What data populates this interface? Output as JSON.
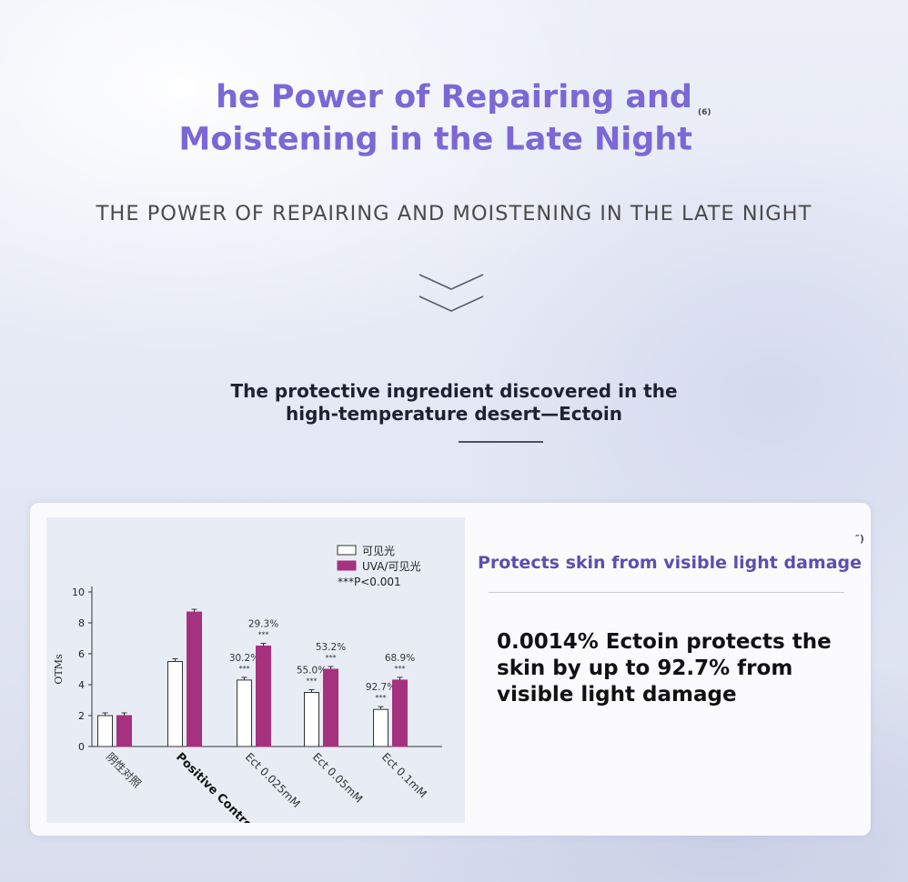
{
  "header": {
    "title_line1": "he Power of Repairing and",
    "title_line2": "Moistening in the Late Night",
    "title_ref": "(6)",
    "subtitle": "THE POWER OF REPAIRING AND MOISTENING IN THE LATE NIGHT",
    "description_line1": "The protective ingredient discovered in the",
    "description_line2": "high-temperature desert—Ectoin"
  },
  "panel": {
    "title": "Protects skin from visible light damage",
    "ref_mark": "″)",
    "body": "0.0014% Ectoin protects the skin by up to 92.7% from visible light damage"
  },
  "colors": {
    "title": "#7b68d6",
    "panel_title": "#5b4fb0",
    "bar_visible": "#ffffff",
    "bar_uva": "#a5317f"
  },
  "chart_data": {
    "type": "bar",
    "ylabel": "OTMs",
    "ylim": [
      0,
      10
    ],
    "yticks": [
      0,
      2,
      4,
      6,
      8,
      10
    ],
    "categories": [
      "阴性对照",
      "Positive Control",
      "Ect 0.025mM",
      "Ect 0.05mM",
      "Ect 0.1mM"
    ],
    "series": [
      {
        "name": "可见光",
        "color": "#ffffff",
        "values": [
          2.0,
          5.5,
          4.3,
          3.5,
          2.4
        ]
      },
      {
        "name": "UVA/可见光",
        "color": "#a5317f",
        "values": [
          2.0,
          8.7,
          6.5,
          5.0,
          4.3
        ]
      }
    ],
    "annotations": [
      {
        "category": 2,
        "series": 0,
        "text": "30.2%",
        "sig": "***"
      },
      {
        "category": 2,
        "series": 1,
        "text": "29.3%",
        "sig": "***"
      },
      {
        "category": 3,
        "series": 0,
        "text": "55.0%",
        "sig": "***"
      },
      {
        "category": 3,
        "series": 1,
        "text": "53.2%",
        "sig": "***"
      },
      {
        "category": 4,
        "series": 0,
        "text": "92.7%",
        "sig": "***"
      },
      {
        "category": 4,
        "series": 1,
        "text": "68.9%",
        "sig": "***"
      }
    ],
    "legend_note": "***P<0.001",
    "legend_position": "top-right",
    "grid": false
  }
}
